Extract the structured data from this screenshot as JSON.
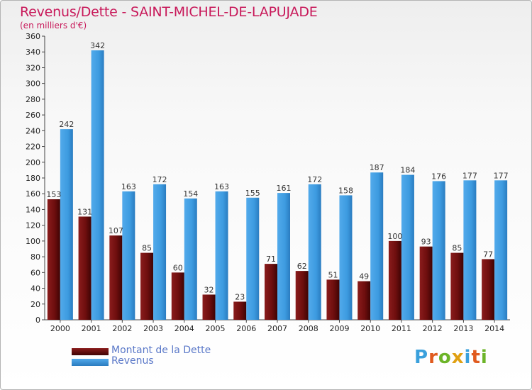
{
  "title": "Revenus/Dette - SAINT-MICHEL-DE-LAPUJADE",
  "subtitle": "(en milliers d'€)",
  "logo": {
    "text": "Proxiti",
    "letters": [
      "P",
      "r",
      "o",
      "x",
      "i",
      "t",
      "i"
    ],
    "colors": [
      "#3aa0dc",
      "#e05a1e",
      "#6cb428",
      "#e0a012",
      "#3aa0dc",
      "#e05a1e",
      "#6cb428"
    ]
  },
  "colors": {
    "dette": "#7a1010",
    "revenus": "#3d9be0",
    "title": "#c8195a",
    "legend_text": "#5a78c8"
  },
  "chart_data": {
    "type": "bar",
    "title": "Revenus/Dette - SAINT-MICHEL-DE-LAPUJADE",
    "subtitle": "(en milliers d'€)",
    "categories": [
      "2000",
      "2001",
      "2002",
      "2003",
      "2004",
      "2005",
      "2006",
      "2007",
      "2008",
      "2009",
      "2010",
      "2011",
      "2012",
      "2013",
      "2014"
    ],
    "series": [
      {
        "name": "Montant de la Dette",
        "values": [
          153,
          131,
          107,
          85,
          60,
          32,
          23,
          71,
          62,
          51,
          49,
          100,
          93,
          85,
          77
        ]
      },
      {
        "name": "Revenus",
        "values": [
          242,
          342,
          163,
          172,
          154,
          163,
          155,
          161,
          172,
          158,
          187,
          184,
          176,
          177,
          177
        ]
      }
    ],
    "ylim": [
      0,
      360
    ],
    "yticks": [
      0,
      20,
      40,
      60,
      80,
      100,
      120,
      140,
      160,
      180,
      200,
      220,
      240,
      260,
      280,
      300,
      320,
      340,
      360
    ],
    "grid": false,
    "legend": "bottom-left"
  }
}
